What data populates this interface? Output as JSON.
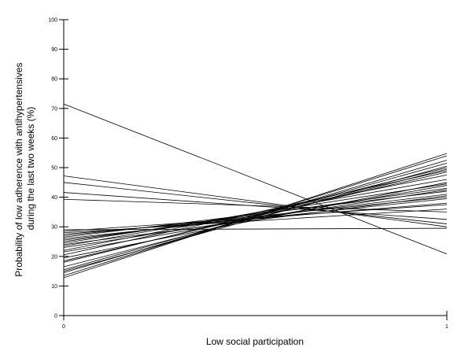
{
  "chart_data": {
    "type": "line",
    "title": "",
    "xlabel": "Low social participation",
    "ylabel": "Probability of low adherence with antihypertensives during the last two weeks (%)",
    "ylabel_lines": [
      "Probability of low adherence with antihypertensives",
      "during the last two weeks (%)"
    ],
    "x": [
      0,
      1
    ],
    "xlim": [
      0,
      1
    ],
    "ylim": [
      0,
      100
    ],
    "xticks": [
      0,
      1
    ],
    "yticks": [
      0,
      10,
      20,
      30,
      40,
      50,
      60,
      70,
      80,
      90,
      100
    ],
    "grid": false,
    "line_color": "#000000",
    "series": [
      {
        "values": [
          71.5,
          20.8
        ]
      },
      {
        "values": [
          47.2,
          30.0
        ]
      },
      {
        "values": [
          45.0,
          31.0
        ]
      },
      {
        "values": [
          41.6,
          32.5
        ]
      },
      {
        "values": [
          39.3,
          35.0
        ]
      },
      {
        "values": [
          29.0,
          29.5
        ]
      },
      {
        "values": [
          28.5,
          37.5
        ]
      },
      {
        "values": [
          28.0,
          36.0
        ]
      },
      {
        "values": [
          27.5,
          38.0
        ]
      },
      {
        "values": [
          27.0,
          40.0
        ]
      },
      {
        "values": [
          26.5,
          42.0
        ]
      },
      {
        "values": [
          26.0,
          39.5
        ]
      },
      {
        "values": [
          25.5,
          41.0
        ]
      },
      {
        "values": [
          25.0,
          43.0
        ]
      },
      {
        "values": [
          24.5,
          44.5
        ]
      },
      {
        "values": [
          24.0,
          40.5
        ]
      },
      {
        "values": [
          23.5,
          46.0
        ]
      },
      {
        "values": [
          23.0,
          42.5
        ]
      },
      {
        "values": [
          22.0,
          47.5
        ]
      },
      {
        "values": [
          21.5,
          44.0
        ]
      },
      {
        "values": [
          20.5,
          49.0
        ]
      },
      {
        "values": [
          19.5,
          45.0
        ]
      },
      {
        "values": [
          18.5,
          48.5
        ]
      },
      {
        "values": [
          18.0,
          50.0
        ]
      },
      {
        "values": [
          16.5,
          49.5
        ]
      },
      {
        "values": [
          15.5,
          51.5
        ]
      },
      {
        "values": [
          15.0,
          50.5
        ]
      },
      {
        "values": [
          14.5,
          52.5
        ]
      },
      {
        "values": [
          13.5,
          54.0
        ]
      },
      {
        "values": [
          12.8,
          54.8
        ]
      }
    ]
  }
}
